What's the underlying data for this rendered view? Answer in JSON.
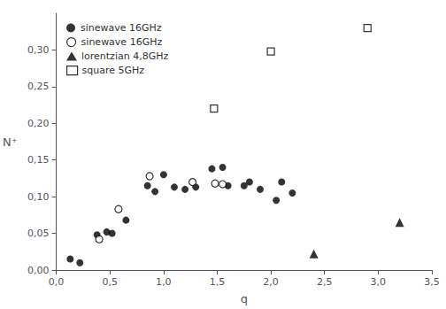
{
  "chart_data": {
    "type": "scatter",
    "xlabel": "q",
    "ylabel": "N⁺",
    "xlim": [
      0.0,
      3.5
    ],
    "ylim": [
      0.0,
      0.35
    ],
    "xticks": [
      {
        "value": 0.0,
        "label": "0,0"
      },
      {
        "value": 0.5,
        "label": "0,5"
      },
      {
        "value": 1.0,
        "label": "1,0"
      },
      {
        "value": 1.5,
        "label": "1,5"
      },
      {
        "value": 2.0,
        "label": "2,0"
      },
      {
        "value": 2.5,
        "label": "2,5"
      },
      {
        "value": 3.0,
        "label": "3,0"
      },
      {
        "value": 3.5,
        "label": "3,5"
      }
    ],
    "yticks": [
      {
        "value": 0.0,
        "label": "0,00"
      },
      {
        "value": 0.05,
        "label": "0,05"
      },
      {
        "value": 0.1,
        "label": "0,10"
      },
      {
        "value": 0.15,
        "label": "0,15"
      },
      {
        "value": 0.2,
        "label": "0,20"
      },
      {
        "value": 0.25,
        "label": "0,25"
      },
      {
        "value": 0.3,
        "label": "0,30"
      }
    ],
    "grid": false,
    "legend": "upper left",
    "series": [
      {
        "name": "sinewave 16GHz",
        "color": "black",
        "marker": "circle",
        "x": [
          0.13,
          0.22,
          0.38,
          0.47,
          0.52,
          0.65,
          0.85,
          0.92,
          1.0,
          1.1,
          1.2,
          1.3,
          1.45,
          1.55,
          1.6,
          1.75,
          1.8,
          1.9,
          2.05,
          2.1,
          2.2
        ],
        "values": [
          0.015,
          0.01,
          0.048,
          0.052,
          0.05,
          0.068,
          0.115,
          0.107,
          0.13,
          0.113,
          0.11,
          0.113,
          0.138,
          0.14,
          0.115,
          0.115,
          0.12,
          0.11,
          0.095,
          0.12,
          0.105
        ]
      },
      {
        "name": "sinewave 16GHz",
        "color": "black",
        "marker": "open_circle",
        "x": [
          0.4,
          0.58,
          0.87,
          1.27,
          1.48,
          1.55
        ],
        "values": [
          0.042,
          0.083,
          0.128,
          0.12,
          0.118,
          0.117
        ]
      },
      {
        "name": "lorentzian 4,8GHz",
        "color": "black",
        "marker": "triangle",
        "x": [
          2.4,
          3.2
        ],
        "values": [
          0.022,
          0.065
        ]
      },
      {
        "name": "square 5GHz",
        "color": "black",
        "marker": "open_square",
        "x": [
          1.47,
          2.0,
          2.9
        ],
        "values": [
          0.22,
          0.298,
          0.33
        ]
      }
    ]
  }
}
